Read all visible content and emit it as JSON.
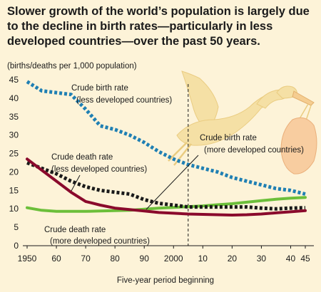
{
  "chart_data": {
    "type": "line",
    "title": "Slower growth of the world’s population is largely due to the decline in birth rates—particularly in less developed countries—over the past 50 years.",
    "ylabel": "(births/deaths per 1,000 population)",
    "xlabel": "Five-year period beginning",
    "ylim": [
      0,
      45
    ],
    "xlim": [
      1950,
      2045
    ],
    "y_ticks": [
      0,
      5,
      10,
      15,
      20,
      25,
      30,
      35,
      40,
      45
    ],
    "x_ticks": [
      1950,
      1960,
      1970,
      1980,
      1990,
      2000,
      2010,
      2020,
      2030,
      2040,
      2045
    ],
    "x_tick_labels": [
      "1950",
      "60",
      "70",
      "80",
      "90",
      "2000",
      "10",
      "20",
      "30",
      "40",
      "45"
    ],
    "projection_start": 2005,
    "grid": false,
    "legend": "none (series labeled inline)",
    "series": [
      {
        "name": "Crude birth rate (less developed countries)",
        "label_lines": [
          "Crude birth rate",
          "(less developed countries)"
        ],
        "style": "dotted",
        "color": "#1f7fb3",
        "x": [
          1950,
          1955,
          1960,
          1965,
          1970,
          1975,
          1980,
          1985,
          1990,
          1995,
          2000,
          2005,
          2010,
          2015,
          2020,
          2025,
          2030,
          2035,
          2040,
          2045
        ],
        "values": [
          44.5,
          42,
          41.5,
          41,
          37,
          32.5,
          31.5,
          30,
          28,
          25.5,
          23.5,
          22,
          21,
          20,
          18.5,
          17.5,
          16.5,
          15.5,
          15,
          14
        ]
      },
      {
        "name": "Crude birth rate (more developed countries)",
        "label_lines": [
          "Crude birth rate",
          "(more developed countries)"
        ],
        "style": "dotted",
        "color": "#1a1a1a",
        "x": [
          1950,
          1955,
          1960,
          1965,
          1970,
          1975,
          1980,
          1985,
          1990,
          1995,
          2000,
          2005,
          2010,
          2015,
          2020,
          2025,
          2030,
          2035,
          2040,
          2045
        ],
        "values": [
          22.5,
          21,
          19.5,
          17.5,
          16,
          15,
          14.5,
          14,
          12.5,
          11.5,
          11,
          10.5,
          10.5,
          10.5,
          10.5,
          10.5,
          10.2,
          10,
          10.2,
          10.3
        ]
      },
      {
        "name": "Crude death rate (less developed countries)",
        "label_lines": [
          "Crude death rate",
          "(less developed countries)"
        ],
        "style": "solid",
        "color": "#8a0a2c",
        "x": [
          1950,
          1955,
          1960,
          1965,
          1970,
          1975,
          1980,
          1985,
          1990,
          1995,
          2000,
          2005,
          2010,
          2015,
          2020,
          2025,
          2030,
          2035,
          2040,
          2045
        ],
        "values": [
          23.5,
          20.5,
          17.5,
          14.5,
          12,
          11,
          10.2,
          9.8,
          9.4,
          9,
          8.8,
          8.6,
          8.5,
          8.4,
          8.3,
          8.4,
          8.6,
          8.9,
          9.2,
          9.5
        ]
      },
      {
        "name": "Crude death rate (more developed countries)",
        "label_lines": [
          "Crude death rate",
          "(more developed countries)"
        ],
        "style": "solid",
        "color": "#6cbf3a",
        "x": [
          1950,
          1955,
          1960,
          1965,
          1970,
          1975,
          1980,
          1985,
          1990,
          1995,
          2000,
          2005,
          2010,
          2015,
          2020,
          2025,
          2030,
          2035,
          2040,
          2045
        ],
        "values": [
          10.3,
          9.6,
          9.3,
          9.3,
          9.3,
          9.4,
          9.5,
          9.6,
          9.9,
          10.2,
          10.4,
          10.6,
          10.8,
          11.1,
          11.4,
          11.8,
          12.2,
          12.6,
          12.9,
          13.1
        ]
      }
    ]
  }
}
